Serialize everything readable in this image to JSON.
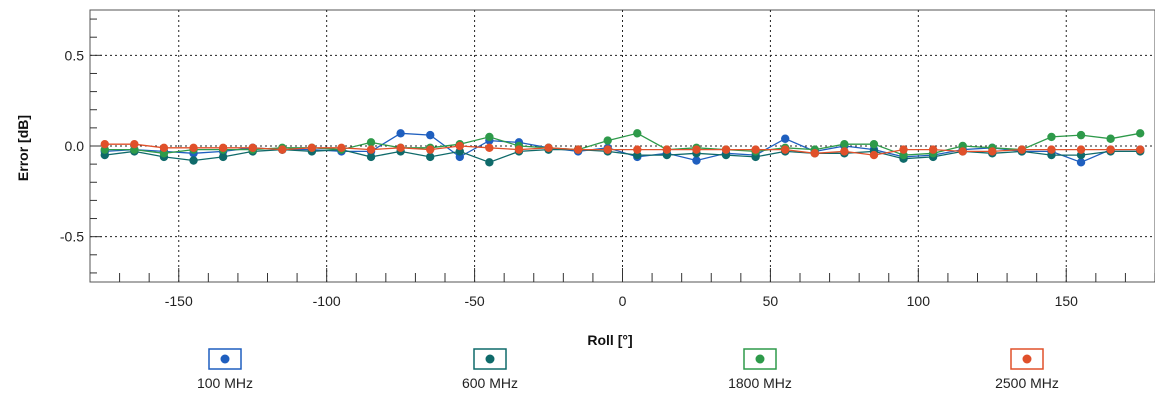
{
  "chart_data": {
    "type": "line",
    "title": "",
    "xlabel": "Roll [°]",
    "ylabel": "Error [dB]",
    "xlim": [
      -180,
      180
    ],
    "ylim": [
      -0.75,
      0.75
    ],
    "x_ticks": [
      -150,
      -100,
      -50,
      0,
      50,
      100,
      150
    ],
    "x_tick_labels": [
      "-150",
      "-100",
      "-50",
      "0",
      "50",
      "100",
      "150"
    ],
    "y_ticks": [
      -0.5,
      0.0,
      0.5
    ],
    "y_tick_labels": [
      "-0.5",
      "0.0",
      "0.5"
    ],
    "grid": true,
    "legend_position": "bottom",
    "x": [
      -175,
      -165,
      -155,
      -145,
      -135,
      -125,
      -115,
      -105,
      -95,
      -85,
      -75,
      -65,
      -55,
      -45,
      -35,
      -25,
      -15,
      -5,
      5,
      15,
      25,
      35,
      45,
      55,
      65,
      75,
      85,
      95,
      105,
      115,
      125,
      135,
      145,
      155,
      165,
      175
    ],
    "series": [
      {
        "name": "100 MHz",
        "color": "#1f5fbf",
        "values": [
          -0.03,
          -0.02,
          -0.03,
          -0.04,
          -0.03,
          -0.01,
          -0.02,
          -0.02,
          -0.03,
          -0.03,
          0.07,
          0.06,
          -0.06,
          0.03,
          0.02,
          -0.01,
          -0.03,
          -0.01,
          -0.06,
          -0.04,
          -0.08,
          -0.04,
          -0.05,
          0.04,
          -0.03,
          0.0,
          -0.02,
          -0.06,
          -0.05,
          -0.02,
          -0.01,
          -0.03,
          -0.03,
          -0.09,
          -0.02,
          -0.02
        ]
      },
      {
        "name": "600 MHz",
        "color": "#0f6a6a",
        "values": [
          -0.05,
          -0.03,
          -0.06,
          -0.08,
          -0.06,
          -0.03,
          -0.02,
          -0.03,
          -0.02,
          -0.06,
          -0.03,
          -0.06,
          -0.03,
          -0.09,
          -0.03,
          -0.02,
          -0.02,
          -0.03,
          -0.05,
          -0.05,
          -0.04,
          -0.05,
          -0.06,
          -0.03,
          -0.04,
          -0.04,
          -0.03,
          -0.07,
          -0.06,
          -0.03,
          -0.04,
          -0.03,
          -0.05,
          -0.05,
          -0.03,
          -0.03
        ]
      },
      {
        "name": "1800 MHz",
        "color": "#2e9a4a",
        "values": [
          -0.02,
          -0.02,
          -0.04,
          -0.02,
          -0.02,
          -0.02,
          -0.01,
          -0.01,
          -0.02,
          0.02,
          -0.01,
          -0.01,
          0.01,
          0.05,
          0.0,
          -0.01,
          -0.02,
          0.03,
          0.07,
          -0.02,
          -0.01,
          -0.02,
          -0.03,
          -0.01,
          -0.02,
          0.01,
          0.01,
          -0.05,
          -0.04,
          0.0,
          -0.01,
          -0.02,
          0.05,
          0.06,
          0.04,
          0.07
        ]
      },
      {
        "name": "2500 MHz",
        "color": "#e0502a",
        "values": [
          0.01,
          0.01,
          -0.01,
          -0.01,
          -0.01,
          -0.01,
          -0.02,
          -0.01,
          -0.01,
          -0.02,
          -0.01,
          -0.02,
          0.0,
          -0.01,
          -0.02,
          -0.01,
          -0.02,
          -0.02,
          -0.02,
          -0.02,
          -0.02,
          -0.02,
          -0.02,
          -0.02,
          -0.04,
          -0.03,
          -0.05,
          -0.02,
          -0.02,
          -0.03,
          -0.03,
          -0.02,
          -0.02,
          -0.02,
          -0.02,
          -0.02
        ]
      }
    ]
  }
}
